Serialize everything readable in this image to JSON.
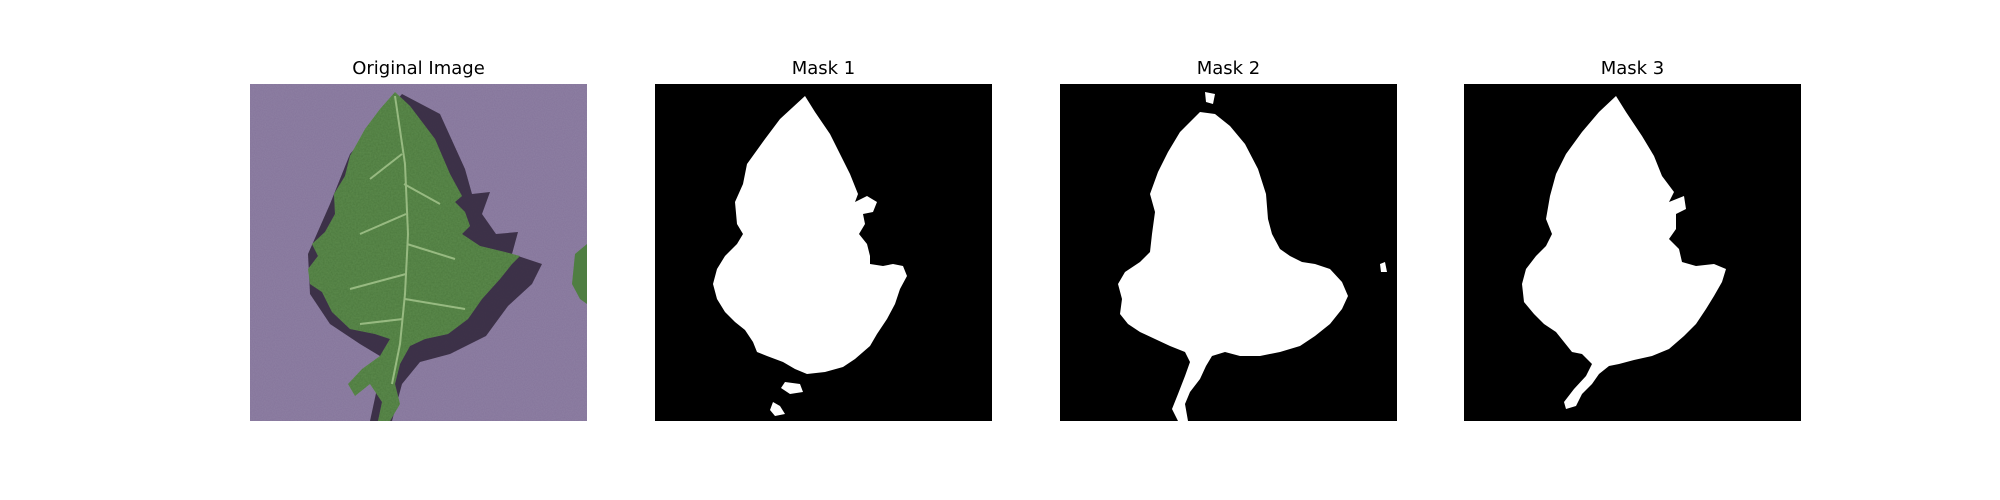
{
  "figure": {
    "panels": [
      {
        "title": "Original Image",
        "kind": "photo",
        "subject": "leaf"
      },
      {
        "title": "Mask 1",
        "kind": "mask",
        "foreground": "#ffffff",
        "background": "#000000"
      },
      {
        "title": "Mask 2",
        "kind": "mask",
        "foreground": "#ffffff",
        "background": "#000000"
      },
      {
        "title": "Mask 3",
        "kind": "mask",
        "foreground": "#ffffff",
        "background": "#000000"
      }
    ],
    "colors": {
      "photo_background": "#8f7fa3",
      "leaf_green": "#5a8a4a",
      "leaf_vein": "#a9c98f",
      "leaf_shadow": "#2e2336"
    }
  }
}
